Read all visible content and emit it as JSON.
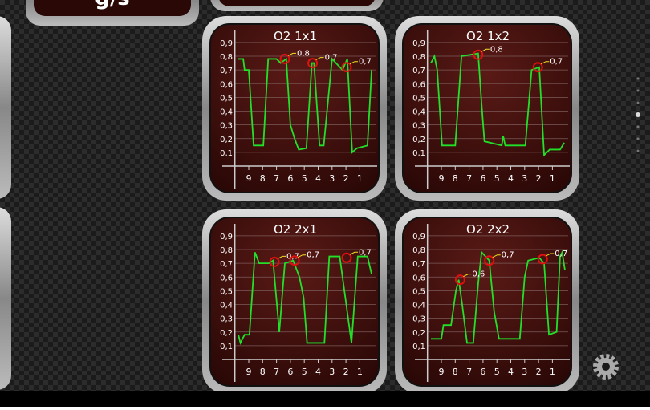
{
  "top_widgets": [
    {
      "label": "g/s"
    }
  ],
  "chart_data": [
    {
      "type": "line",
      "title": "O2 1x1",
      "color": "#22e02a",
      "xlim": [
        10,
        0
      ],
      "ylim": [
        0,
        1
      ],
      "xticks": [
        9,
        8,
        7,
        6,
        5,
        4,
        3,
        2,
        1
      ],
      "yticks": [
        {
          "value": 0.1,
          "label": "0,1"
        },
        {
          "value": 0.2,
          "label": "0,2"
        },
        {
          "value": 0.3,
          "label": "0,3"
        },
        {
          "value": 0.4,
          "label": "0,4"
        },
        {
          "value": 0.5,
          "label": "0,5"
        },
        {
          "value": 0.6,
          "label": "0,6"
        },
        {
          "value": 0.7,
          "label": "0,7"
        },
        {
          "value": 0.8,
          "label": "0,8"
        },
        {
          "value": 0.9,
          "label": "0,9"
        }
      ],
      "x": [
        9.75,
        9.4,
        9.3,
        9.0,
        8.65,
        7.95,
        7.6,
        7.0,
        6.7,
        6.3,
        6.0,
        5.7,
        5.4,
        4.85,
        4.45,
        4.3,
        3.9,
        3.6,
        3.0,
        2.25,
        1.9,
        1.55,
        1.2,
        0.45,
        0.15
      ],
      "values": [
        0.78,
        0.78,
        0.7,
        0.7,
        0.15,
        0.15,
        0.78,
        0.78,
        0.75,
        0.78,
        0.3,
        0.2,
        0.12,
        0.13,
        0.75,
        0.75,
        0.15,
        0.15,
        0.78,
        0.7,
        0.78,
        0.1,
        0.13,
        0.15,
        0.7
      ],
      "markers": [
        {
          "x": 6.4,
          "y": 0.78,
          "label": "0,8"
        },
        {
          "x": 4.4,
          "y": 0.75,
          "label": "0,7"
        },
        {
          "x": 1.95,
          "y": 0.72,
          "label": "0,7"
        }
      ]
    },
    {
      "type": "line",
      "title": "O2 1x2",
      "color": "#22e02a",
      "xlim": [
        10,
        0
      ],
      "ylim": [
        0,
        1
      ],
      "xticks": [
        9,
        8,
        7,
        6,
        5,
        4,
        3,
        2,
        1
      ],
      "yticks": [
        {
          "value": 0.1,
          "label": "0,1"
        },
        {
          "value": 0.2,
          "label": "0,2"
        },
        {
          "value": 0.3,
          "label": "0,3"
        },
        {
          "value": 0.4,
          "label": "0,4"
        },
        {
          "value": 0.5,
          "label": "0,5"
        },
        {
          "value": 0.6,
          "label": "0,6"
        },
        {
          "value": 0.7,
          "label": "0,7"
        },
        {
          "value": 0.8,
          "label": "0,8"
        },
        {
          "value": 0.9,
          "label": "0,9"
        }
      ],
      "x": [
        9.75,
        9.5,
        9.3,
        8.95,
        8.0,
        7.55,
        6.35,
        6.1,
        5.9,
        4.65,
        4.55,
        4.4,
        2.95,
        2.5,
        1.95,
        1.6,
        1.2,
        0.45,
        0.15
      ],
      "values": [
        0.75,
        0.8,
        0.7,
        0.15,
        0.15,
        0.8,
        0.82,
        0.45,
        0.18,
        0.15,
        0.22,
        0.15,
        0.15,
        0.7,
        0.72,
        0.08,
        0.12,
        0.12,
        0.17
      ],
      "markers": [
        {
          "x": 6.35,
          "y": 0.81,
          "label": "0,8"
        },
        {
          "x": 2.05,
          "y": 0.72,
          "label": "0,7"
        }
      ]
    },
    {
      "type": "line",
      "title": "O2 2x1",
      "color": "#22e02a",
      "xlim": [
        10,
        0
      ],
      "ylim": [
        0,
        1
      ],
      "xticks": [
        9,
        8,
        7,
        6,
        5,
        4,
        3,
        2,
        1
      ],
      "yticks": [
        {
          "value": 0.1,
          "label": "0,1"
        },
        {
          "value": 0.2,
          "label": "0,2"
        },
        {
          "value": 0.3,
          "label": "0,3"
        },
        {
          "value": 0.4,
          "label": "0,4"
        },
        {
          "value": 0.5,
          "label": "0,5"
        },
        {
          "value": 0.6,
          "label": "0,6"
        },
        {
          "value": 0.7,
          "label": "0,7"
        },
        {
          "value": 0.8,
          "label": "0,8"
        },
        {
          "value": 0.9,
          "label": "0,9"
        }
      ],
      "x": [
        9.75,
        9.6,
        9.3,
        8.95,
        8.55,
        8.25,
        7.55,
        7.25,
        6.8,
        6.4,
        5.8,
        5.35,
        5.05,
        4.8,
        3.55,
        3.2,
        2.45,
        1.6,
        1.15,
        0.45,
        0.15
      ],
      "values": [
        0.18,
        0.12,
        0.18,
        0.18,
        0.78,
        0.7,
        0.7,
        0.72,
        0.2,
        0.7,
        0.72,
        0.6,
        0.45,
        0.12,
        0.12,
        0.75,
        0.75,
        0.12,
        0.75,
        0.75,
        0.62
      ],
      "markers": [
        {
          "x": 7.15,
          "y": 0.71,
          "label": "0,7"
        },
        {
          "x": 5.7,
          "y": 0.72,
          "label": "0,7"
        },
        {
          "x": 1.95,
          "y": 0.74,
          "label": "0,7"
        }
      ]
    },
    {
      "type": "line",
      "title": "O2 2x2",
      "color": "#22e02a",
      "xlim": [
        10,
        0
      ],
      "ylim": [
        0,
        1
      ],
      "xticks": [
        9,
        8,
        7,
        6,
        5,
        4,
        3,
        2,
        1
      ],
      "yticks": [
        {
          "value": 0.1,
          "label": "0,1"
        },
        {
          "value": 0.2,
          "label": "0,2"
        },
        {
          "value": 0.3,
          "label": "0,3"
        },
        {
          "value": 0.4,
          "label": "0,4"
        },
        {
          "value": 0.5,
          "label": "0,5"
        },
        {
          "value": 0.6,
          "label": "0,6"
        },
        {
          "value": 0.7,
          "label": "0,7"
        },
        {
          "value": 0.8,
          "label": "0,8"
        },
        {
          "value": 0.9,
          "label": "0,9"
        }
      ],
      "x": [
        9.75,
        9.0,
        8.85,
        8.3,
        7.95,
        7.75,
        7.5,
        7.15,
        6.7,
        6.35,
        6.1,
        5.55,
        5.2,
        4.85,
        3.35,
        3.0,
        2.75,
        1.95,
        1.6,
        1.25,
        0.7,
        0.45,
        0.3,
        0.1
      ],
      "values": [
        0.15,
        0.15,
        0.25,
        0.25,
        0.5,
        0.58,
        0.4,
        0.12,
        0.12,
        0.55,
        0.78,
        0.72,
        0.35,
        0.15,
        0.15,
        0.6,
        0.72,
        0.74,
        0.7,
        0.18,
        0.2,
        0.75,
        0.78,
        0.65
      ],
      "markers": [
        {
          "x": 7.65,
          "y": 0.58,
          "label": "0,6"
        },
        {
          "x": 5.55,
          "y": 0.72,
          "label": "0,7"
        },
        {
          "x": 1.7,
          "y": 0.73,
          "label": "0,7"
        }
      ]
    }
  ]
}
